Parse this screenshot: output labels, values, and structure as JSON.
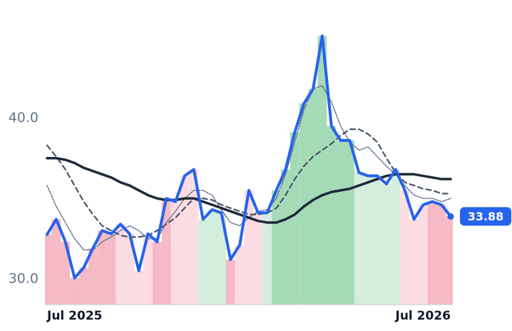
{
  "chart_data": {
    "type": "line",
    "categories": [
      "Jul 2025",
      null,
      null,
      null,
      null,
      null,
      null,
      null,
      null,
      null,
      null,
      null,
      null,
      null,
      null,
      null,
      null,
      null,
      null,
      null,
      null,
      null,
      null,
      null,
      null,
      null,
      null,
      null,
      null,
      null,
      null,
      null,
      null,
      null,
      null,
      null,
      null,
      null,
      null,
      null,
      null,
      null,
      null,
      null,
      "Jul 2026"
    ],
    "series": [
      {
        "color": "#2563eb",
        "width": 4,
        "dash": "none",
        "values": [
          32.76,
          33.7,
          32.3,
          30.05,
          30.7,
          31.9,
          33.0,
          32.8,
          33.4,
          32.8,
          30.5,
          32.8,
          32.3,
          35.0,
          34.8,
          36.4,
          36.8,
          33.7,
          34.3,
          34.1,
          31.2,
          32.1,
          35.5,
          34.1,
          34.1,
          35.5,
          36.8,
          39.1,
          40.9,
          41.8,
          45.1,
          39.5,
          38.6,
          38.6,
          36.6,
          36.4,
          36.4,
          35.9,
          36.8,
          35.5,
          33.7,
          34.6,
          34.8,
          34.6,
          33.88
        ]
      },
      {
        "color": "#1e293b",
        "width": 3.5,
        "dash": "none",
        "values": [
          37.5,
          37.5,
          37.4,
          37.2,
          36.9,
          36.7,
          36.5,
          36.3,
          36.0,
          35.8,
          35.5,
          35.2,
          35.0,
          34.9,
          34.9,
          35.0,
          35.0,
          34.8,
          34.6,
          34.4,
          34.2,
          34.0,
          33.8,
          33.6,
          33.5,
          33.5,
          33.7,
          34.0,
          34.5,
          34.9,
          35.2,
          35.4,
          35.5,
          35.6,
          35.8,
          36.0,
          36.2,
          36.4,
          36.5,
          36.5,
          36.5,
          36.4,
          36.3,
          36.2,
          36.2
        ]
      },
      {
        "color": "#475569",
        "width": 2.2,
        "dash": "7 5",
        "values": [
          38.3,
          37.6,
          36.8,
          35.8,
          34.8,
          34.0,
          33.3,
          33.0,
          32.7,
          32.6,
          32.6,
          32.7,
          33.0,
          33.4,
          33.8,
          34.4,
          35.0,
          35.0,
          34.9,
          34.6,
          34.4,
          34.2,
          34.0,
          34.0,
          34.1,
          34.4,
          35.2,
          36.2,
          37.0,
          37.6,
          38.0,
          38.4,
          38.9,
          39.3,
          39.3,
          39.0,
          38.5,
          37.5,
          36.6,
          36.0,
          35.8,
          35.6,
          35.5,
          35.3,
          35.3
        ]
      },
      {
        "color": "#64748b",
        "width": 1.6,
        "dash": "2 2",
        "values": [
          35.8,
          34.5,
          33.5,
          32.5,
          31.8,
          31.8,
          32.3,
          32.6,
          33.0,
          33.3,
          33.0,
          32.5,
          32.5,
          33.5,
          34.2,
          35.0,
          35.5,
          35.5,
          35.2,
          34.3,
          33.5,
          33.3,
          33.8,
          34.2,
          34.3,
          35.0,
          36.5,
          38.5,
          40.5,
          41.8,
          42.0,
          41.0,
          39.5,
          38.5,
          38.0,
          38.2,
          37.6,
          37.0,
          36.5,
          35.8,
          35.2,
          35.0,
          35.0,
          34.8,
          35.0
        ]
      }
    ],
    "fill_colors": [
      "#f6b9c6",
      "#f6b9c6",
      "#f6b9c6",
      "#f6b9c6",
      "#f6b9c6",
      "#f6b9c6",
      "#f6b9c6",
      "#f6b9c6",
      "#fcdce3",
      "#fcdce3",
      "#fcdce3",
      "#fcdce3",
      "#f6b9c6",
      "#f6b9c6",
      "#fcdce3",
      "#fcdce3",
      "#fcdce3",
      "#d3eedc",
      "#d3eedc",
      "#d3eedc",
      "#f6b9c6",
      "#fcdce3",
      "#fcdce3",
      "#fcdce3",
      "#d3eedc",
      "#a5dab6",
      "#a5dab6",
      "#a5dab6",
      "#a5dab6",
      "#a5dab6",
      "#a5dab6",
      "#a5dab6",
      "#a5dab6",
      "#a5dab6",
      "#d3eedc",
      "#d3eedc",
      "#d3eedc",
      "#d3eedc",
      "#d3eedc",
      "#fcdce3",
      "#fcdce3",
      "#fcdce3",
      "#f6b9c6",
      "#f6b9c6",
      "#f6b9c6"
    ],
    "ylim": [
      28.4,
      46
    ],
    "yticks": [
      {
        "value": 30,
        "label": "30.0"
      },
      {
        "value": 40,
        "label": "40.0"
      }
    ],
    "badge_color": "#2563eb"
  }
}
